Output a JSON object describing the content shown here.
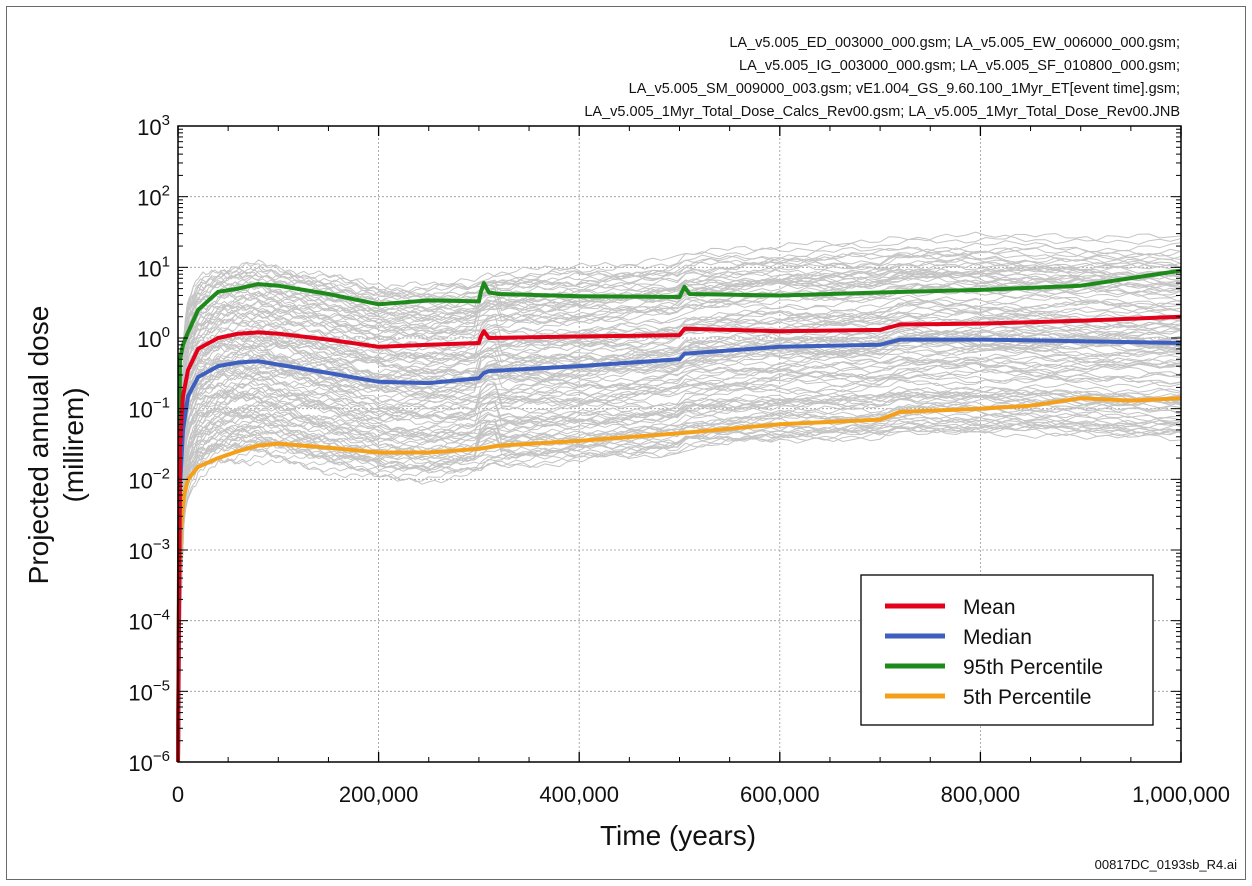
{
  "header_lines": [
    "LA_v5.005_ED_003000_000.gsm; LA_v5.005_EW_006000_000.gsm;",
    "LA_v5.005_IG_003000_000.gsm; LA_v5.005_SF_010800_000.gsm;",
    "LA_v5.005_SM_009000_003.gsm; vE1.004_GS_9.60.100_1Myr_ET[event time].gsm;",
    "LA_v5.005_1Myr_Total_Dose_Calcs_Rev00.gsm; LA_v5.005_1Myr_Total_Dose_Rev00.JNB"
  ],
  "footer_id": "00817DC_0193sb_R4.ai",
  "chart_data": {
    "type": "line",
    "title": "",
    "xlabel": "Time (years)",
    "ylabel_lines": [
      "Projected annual dose",
      "(millirem)"
    ],
    "y_scale": "log",
    "xlim": [
      0,
      1000000
    ],
    "ylim": [
      1e-06,
      1000
    ],
    "x_ticks": [
      0,
      200000,
      400000,
      600000,
      800000,
      1000000
    ],
    "x_tick_labels": [
      "0",
      "200,000",
      "400,000",
      "600,000",
      "800,000",
      "1,000,000"
    ],
    "y_ticks": [
      {
        "value": 1e-06,
        "base": "10",
        "exp": "−6"
      },
      {
        "value": 1e-05,
        "base": "10",
        "exp": "−5"
      },
      {
        "value": 0.0001,
        "base": "10",
        "exp": "−4"
      },
      {
        "value": 0.001,
        "base": "10",
        "exp": "−3"
      },
      {
        "value": 0.01,
        "base": "10",
        "exp": "−2"
      },
      {
        "value": 0.1,
        "base": "10",
        "exp": "−1"
      },
      {
        "value": 1,
        "base": "10",
        "exp": "0"
      },
      {
        "value": 10,
        "base": "10",
        "exp": "1"
      },
      {
        "value": 100,
        "base": "10",
        "exp": "2"
      },
      {
        "value": 1000,
        "base": "10",
        "exp": "3"
      }
    ],
    "grid": true,
    "legend_position": "bottom-right",
    "realization_color": "#c4c4c4",
    "series": [
      {
        "name": "Mean",
        "color": "#e3001b",
        "x": [
          0,
          2000,
          5000,
          10000,
          20000,
          40000,
          60000,
          80000,
          100000,
          150000,
          200000,
          250000,
          300000,
          302000,
          305000,
          310000,
          400000,
          500000,
          505000,
          600000,
          700000,
          720000,
          800000,
          900000,
          1000000
        ],
        "y": [
          1e-06,
          0.03,
          0.15,
          0.35,
          0.7,
          1.0,
          1.15,
          1.2,
          1.15,
          0.95,
          0.75,
          0.8,
          0.85,
          1.05,
          1.25,
          1.0,
          1.05,
          1.1,
          1.35,
          1.25,
          1.3,
          1.55,
          1.6,
          1.75,
          2.0
        ]
      },
      {
        "name": "Median",
        "color": "#3e5fbd",
        "x": [
          0,
          2000,
          5000,
          10000,
          20000,
          40000,
          60000,
          80000,
          100000,
          150000,
          200000,
          250000,
          300000,
          305000,
          310000,
          400000,
          500000,
          505000,
          600000,
          700000,
          720000,
          800000,
          900000,
          1000000
        ],
        "y": [
          1e-06,
          0.008,
          0.05,
          0.15,
          0.28,
          0.4,
          0.45,
          0.47,
          0.42,
          0.32,
          0.24,
          0.23,
          0.27,
          0.32,
          0.34,
          0.4,
          0.5,
          0.6,
          0.75,
          0.8,
          0.95,
          0.95,
          0.9,
          0.85
        ]
      },
      {
        "name": "95th Percentile",
        "color": "#1f8a1c",
        "x": [
          0,
          2000,
          5000,
          10000,
          20000,
          40000,
          60000,
          80000,
          100000,
          150000,
          200000,
          250000,
          300000,
          302000,
          305000,
          310000,
          320000,
          400000,
          500000,
          505000,
          510000,
          600000,
          700000,
          800000,
          900000,
          1000000
        ],
        "y": [
          1e-06,
          0.5,
          0.8,
          1.2,
          2.5,
          4.5,
          5.0,
          5.8,
          5.5,
          4.2,
          3.0,
          3.4,
          3.3,
          4.5,
          6.0,
          4.4,
          4.2,
          3.9,
          3.8,
          5.3,
          4.2,
          4.0,
          4.4,
          4.8,
          5.5,
          9.0
        ]
      },
      {
        "name": "5th Percentile",
        "color": "#f5a01a",
        "x": [
          0,
          1000,
          3000,
          6000,
          10000,
          20000,
          40000,
          60000,
          80000,
          100000,
          150000,
          200000,
          250000,
          300000,
          320000,
          400000,
          500000,
          600000,
          700000,
          720000,
          800000,
          850000,
          900000,
          950000,
          1000000
        ],
        "y": [
          1e-06,
          0.0002,
          0.002,
          0.006,
          0.01,
          0.015,
          0.02,
          0.025,
          0.03,
          0.032,
          0.028,
          0.024,
          0.024,
          0.027,
          0.03,
          0.035,
          0.045,
          0.06,
          0.07,
          0.09,
          0.1,
          0.11,
          0.14,
          0.13,
          0.14
        ]
      }
    ]
  }
}
